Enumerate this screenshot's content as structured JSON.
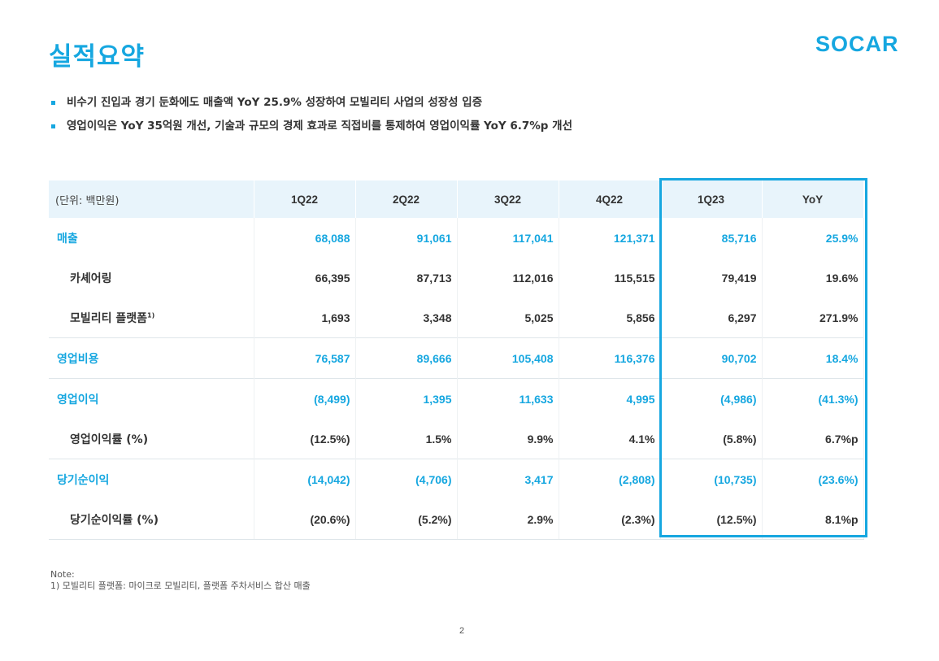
{
  "title": "실적요약",
  "logo": "SOCAR",
  "bullets": [
    "비수기 진입과 경기 둔화에도 매출액 YoY 25.9% 성장하여 모빌리티 사업의 성장성 입증",
    "영업이익은 YoY 35억원 개선, 기술과 규모의 경제 효과로 직접비를 통제하여 영업이익률 YoY 6.7%p 개선"
  ],
  "table": {
    "unit_label": "(단위: 백만원)",
    "columns": [
      "1Q22",
      "2Q22",
      "3Q22",
      "4Q22",
      "1Q23",
      "YoY"
    ],
    "rows": [
      {
        "label": "매출",
        "values": [
          "68,088",
          "91,061",
          "117,041",
          "121,371",
          "85,716",
          "25.9%"
        ]
      },
      {
        "label": "카셰어링",
        "values": [
          "66,395",
          "87,713",
          "112,016",
          "115,515",
          "79,419",
          "19.6%"
        ]
      },
      {
        "label": "모빌리티 플랫폼",
        "sup": "1)",
        "values": [
          "1,693",
          "3,348",
          "5,025",
          "5,856",
          "6,297",
          "271.9%"
        ]
      },
      {
        "label": "영업비용",
        "values": [
          "76,587",
          "89,666",
          "105,408",
          "116,376",
          "90,702",
          "18.4%"
        ]
      },
      {
        "label": "영업이익",
        "values": [
          "(8,499)",
          "1,395",
          "11,633",
          "4,995",
          "(4,986)",
          "(41.3%)"
        ]
      },
      {
        "label": "영업이익률 (%)",
        "values": [
          "(12.5%)",
          "1.5%",
          "9.9%",
          "4.1%",
          "(5.8%)",
          "6.7%p"
        ]
      },
      {
        "label": "당기순이익",
        "values": [
          "(14,042)",
          "(4,706)",
          "3,417",
          "(2,808)",
          "(10,735)",
          "(23.6%)"
        ]
      },
      {
        "label": "당기순이익률 (%)",
        "values": [
          "(20.6%)",
          "(5.2%)",
          "2.9%",
          "(2.3%)",
          "(12.5%)",
          "8.1%p"
        ]
      }
    ]
  },
  "note": {
    "heading": "Note:",
    "line1": "1) 모빌리티 플랫폼: 마이크로 모빌리티, 플랫폼 주차서비스 합산 매출"
  },
  "page_number": "2",
  "colors": {
    "accent": "#16a7e0",
    "header_bg": "#e8f4fb"
  }
}
